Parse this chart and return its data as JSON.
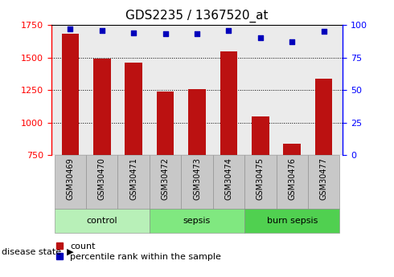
{
  "title": "GDS2235 / 1367520_at",
  "samples": [
    "GSM30469",
    "GSM30470",
    "GSM30471",
    "GSM30472",
    "GSM30473",
    "GSM30474",
    "GSM30475",
    "GSM30476",
    "GSM30477"
  ],
  "counts": [
    1680,
    1490,
    1460,
    1240,
    1255,
    1545,
    1045,
    840,
    1340
  ],
  "percentiles": [
    97,
    96,
    94,
    93,
    93,
    96,
    90,
    87,
    95
  ],
  "groups": [
    {
      "label": "control",
      "indices": [
        0,
        1,
        2
      ],
      "color": "#b8f0b8"
    },
    {
      "label": "sepsis",
      "indices": [
        3,
        4,
        5
      ],
      "color": "#80e880"
    },
    {
      "label": "burn sepsis",
      "indices": [
        6,
        7,
        8
      ],
      "color": "#50d050"
    }
  ],
  "ylim_left": [
    750,
    1750
  ],
  "ylim_right": [
    0,
    100
  ],
  "yticks_left": [
    750,
    1000,
    1250,
    1500,
    1750
  ],
  "yticks_right": [
    0,
    25,
    50,
    75,
    100
  ],
  "bar_color": "#bb1111",
  "dot_color": "#0000bb",
  "bar_width": 0.55,
  "bg_color": "#ebebeb",
  "legend_label_count": "count",
  "legend_label_pct": "percentile rank within the sample",
  "disease_state_label": "disease state",
  "figsize": [
    4.9,
    3.45
  ],
  "dpi": 100
}
